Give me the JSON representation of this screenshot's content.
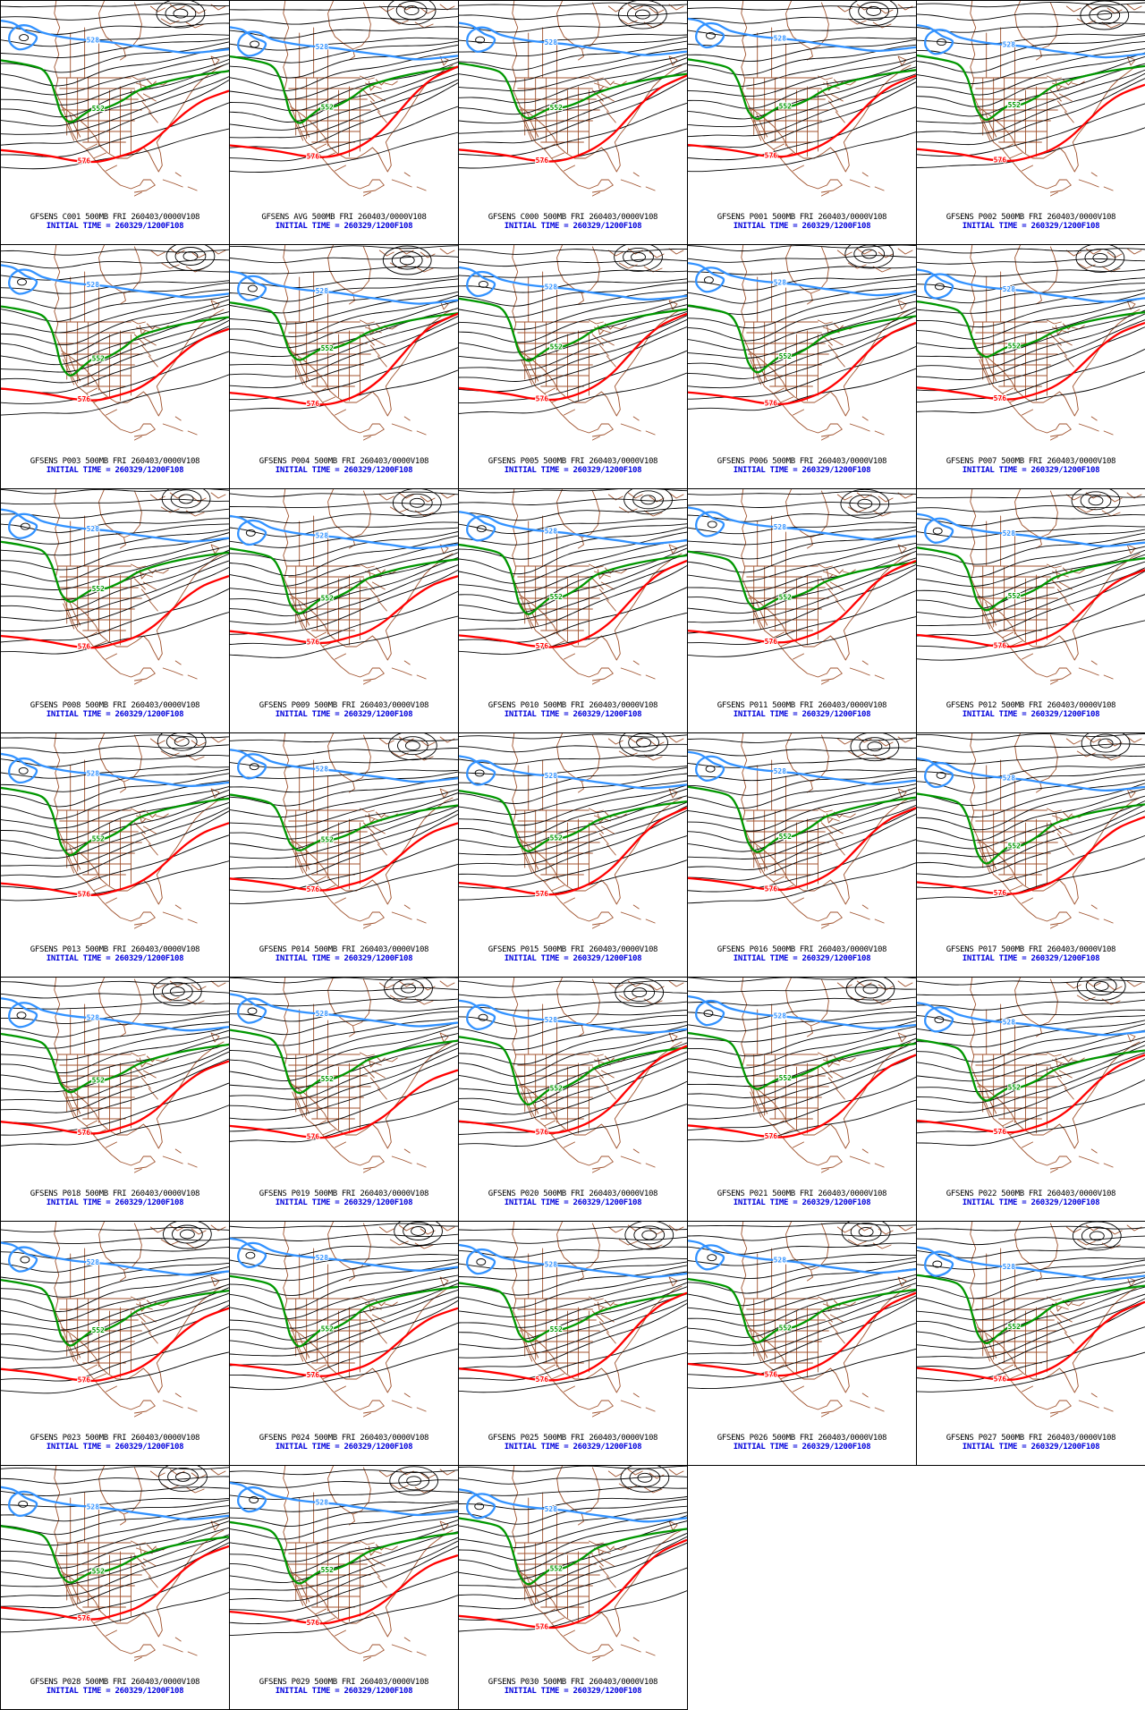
{
  "product": {
    "model": "GFSENS",
    "level": "500MB",
    "valid_time": "FRI 260403/0000V108",
    "initial_time_label": "INITIAL TIME = 260329/1200F108",
    "forecast_hour": "F108"
  },
  "contour_labels": {
    "blue": "528",
    "green": "552",
    "red": "576"
  },
  "colors": {
    "background": "#ffffff",
    "panel_border": "#000000",
    "contour_black": "#000000",
    "contour_blue": "#3292ff",
    "contour_green": "#009700",
    "contour_red": "#ff0000",
    "geography_brown": "#a0522d",
    "caption_text": "#000000",
    "initial_time_text": "#0000dd"
  },
  "captions_shared": {
    "line2": "INITIAL TIME = 260329/1200F108"
  },
  "panels": [
    {
      "member": "C001",
      "line1": "GFSENS C001 500MB FRI 260403/0000V108"
    },
    {
      "member": "AVG",
      "line1": "GFSENS AVG 500MB FRI 260403/0000V108"
    },
    {
      "member": "C000",
      "line1": "GFSENS C000 500MB FRI 260403/0000V108"
    },
    {
      "member": "P001",
      "line1": "GFSENS P001 500MB FRI 260403/0000V108"
    },
    {
      "member": "P002",
      "line1": "GFSENS P002 500MB FRI 260403/0000V108"
    },
    {
      "member": "P003",
      "line1": "GFSENS P003 500MB FRI 260403/0000V108"
    },
    {
      "member": "P004",
      "line1": "GFSENS P004 500MB FRI 260403/0000V108"
    },
    {
      "member": "P005",
      "line1": "GFSENS P005 500MB FRI 260403/0000V108"
    },
    {
      "member": "P006",
      "line1": "GFSENS P006 500MB FRI 260403/0000V108"
    },
    {
      "member": "P007",
      "line1": "GFSENS P007 500MB FRI 260403/0000V108"
    },
    {
      "member": "P008",
      "line1": "GFSENS P008 500MB FRI 260403/0000V108"
    },
    {
      "member": "P009",
      "line1": "GFSENS P009 500MB FRI 260403/0000V108"
    },
    {
      "member": "P010",
      "line1": "GFSENS P010 500MB FRI 260403/0000V108"
    },
    {
      "member": "P011",
      "line1": "GFSENS P011 500MB FRI 260403/0000V108"
    },
    {
      "member": "P012",
      "line1": "GFSENS P012 500MB FRI 260403/0000V108"
    },
    {
      "member": "P013",
      "line1": "GFSENS P013 500MB FRI 260403/0000V108"
    },
    {
      "member": "P014",
      "line1": "GFSENS P014 500MB FRI 260403/0000V108"
    },
    {
      "member": "P015",
      "line1": "GFSENS P015 500MB FRI 260403/0000V108"
    },
    {
      "member": "P016",
      "line1": "GFSENS P016 500MB FRI 260403/0000V108"
    },
    {
      "member": "P017",
      "line1": "GFSENS P017 500MB FRI 260403/0000V108"
    },
    {
      "member": "P018",
      "line1": "GFSENS P018 500MB FRI 260403/0000V108"
    },
    {
      "member": "P019",
      "line1": "GFSENS P019 500MB FRI 260403/0000V108"
    },
    {
      "member": "P020",
      "line1": "GFSENS P020 500MB FRI 260403/0000V108"
    },
    {
      "member": "P021",
      "line1": "GFSENS P021 500MB FRI 260403/0000V108"
    },
    {
      "member": "P022",
      "line1": "GFSENS P022 500MB FRI 260403/0000V108"
    },
    {
      "member": "P023",
      "line1": "GFSENS P023 500MB FRI 260403/0000V108"
    },
    {
      "member": "P024",
      "line1": "GFSENS P024 500MB FRI 260403/0000V108"
    },
    {
      "member": "P025",
      "line1": "GFSENS P025 500MB FRI 260403/0000V108"
    },
    {
      "member": "P026",
      "line1": "GFSENS P026 500MB FRI 260403/0000V108"
    },
    {
      "member": "P027",
      "line1": "GFSENS P027 500MB FRI 260403/0000V108"
    },
    {
      "member": "P028",
      "line1": "GFSENS P028 500MB FRI 260403/0000V108"
    },
    {
      "member": "P029",
      "line1": "GFSENS P029 500MB FRI 260403/0000V108"
    },
    {
      "member": "P030",
      "line1": "GFSENS P030 500MB FRI 260403/0000V108"
    }
  ]
}
